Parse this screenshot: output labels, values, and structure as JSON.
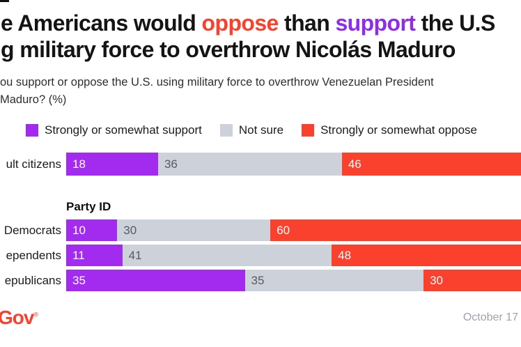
{
  "title": {
    "line1_segments": [
      {
        "text": "e Americans would ",
        "color": "#141414"
      },
      {
        "text": "oppose",
        "color": "#fa412d"
      },
      {
        "text": " than ",
        "color": "#141414"
      },
      {
        "text": "support",
        "color": "#8f2beb"
      },
      {
        "text": " the U.S",
        "color": "#141414"
      }
    ],
    "line2": "g military force to overthrow Nicolás Maduro"
  },
  "subtitle": {
    "line1": "ou support or oppose the U.S. using military force to overthrow Venezuelan President",
    "line2": "Maduro? (%)"
  },
  "chart_data": {
    "type": "bar",
    "orientation": "horizontal",
    "stacked": true,
    "unit": "%",
    "xlim": [
      0,
      100
    ],
    "categories": [
      "ult citizens",
      "Democrats",
      "ependents",
      "epublicans"
    ],
    "group_header": {
      "text": "Party ID",
      "before_category_index": 1
    },
    "series": [
      {
        "name": "Strongly or somewhat support",
        "color": "#a32bf0",
        "value_text_color": "#ffffff",
        "values": [
          18,
          10,
          11,
          35
        ]
      },
      {
        "name": "Not sure",
        "color": "#cdd1da",
        "value_text_color": "#565b66",
        "values": [
          36,
          30,
          41,
          35
        ]
      },
      {
        "name": "Strongly or somewhat oppose",
        "color": "#fa412d",
        "value_text_color": "#ffffff",
        "values": [
          46,
          60,
          48,
          30
        ]
      }
    ],
    "legend_position": "top"
  },
  "footer": {
    "logo_text": "Gov",
    "logo_mark": "®",
    "logo_color": "#fa412d",
    "date": "October 17"
  }
}
